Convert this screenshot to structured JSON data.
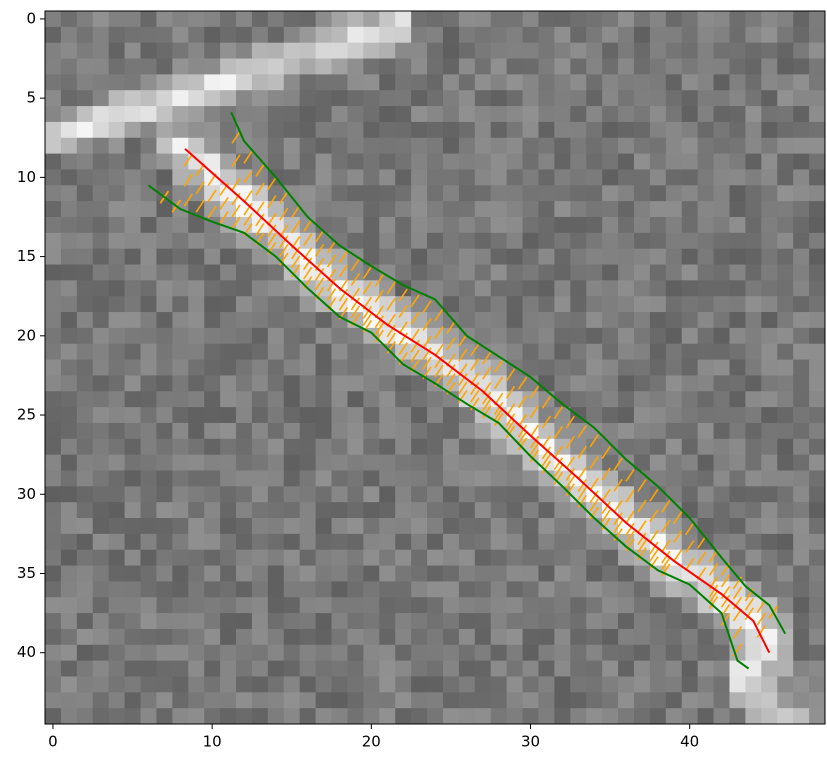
{
  "chart_data": {
    "type": "line",
    "xlim": [
      -0.5,
      48.5
    ],
    "ylim": [
      44.5,
      -0.5
    ],
    "xticks": [
      0,
      10,
      20,
      30,
      40
    ],
    "yticks": [
      0,
      5,
      10,
      15,
      20,
      25,
      30,
      35,
      40
    ],
    "series": [
      {
        "color": "#ff0000",
        "x": [
          8.3,
          12,
          15,
          18,
          21,
          24,
          27,
          30,
          33,
          36,
          39,
          42,
          44,
          45
        ],
        "values": [
          8.2,
          11.5,
          14.3,
          17,
          19.3,
          21.2,
          23.5,
          26.3,
          29,
          31.8,
          34.2,
          36.3,
          38,
          40
        ]
      },
      {
        "color": "#008000",
        "x": [
          11.2,
          12,
          14,
          16,
          18,
          20,
          22,
          24,
          26,
          28,
          30,
          32,
          34,
          36,
          38,
          40,
          42,
          43.5,
          45,
          46
        ],
        "values": [
          5.9,
          7.7,
          10,
          12.5,
          14.3,
          15.6,
          16.8,
          17.7,
          20,
          21.3,
          22.6,
          24.3,
          25.8,
          27.8,
          29.5,
          31.5,
          34,
          35.8,
          37,
          38.8
        ]
      },
      {
        "color": "#008000",
        "x": [
          6,
          8,
          10,
          12,
          14,
          16,
          18,
          20,
          22,
          24,
          26,
          28,
          30,
          32,
          34,
          36,
          38,
          40,
          42,
          43,
          43.7
        ],
        "values": [
          10.5,
          12,
          12.8,
          13.5,
          15,
          17,
          18.8,
          19.8,
          21.8,
          23,
          24.3,
          25.5,
          27.6,
          29.5,
          31.5,
          33.3,
          34.8,
          35.7,
          37.5,
          40.5,
          41
        ]
      }
    ]
  }
}
